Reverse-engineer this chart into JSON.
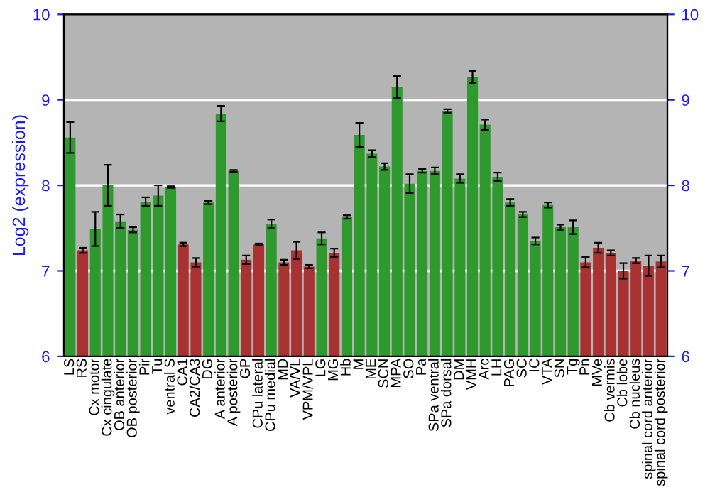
{
  "chart_data": {
    "type": "bar",
    "ylabel": "Log2 (expression)",
    "categories": [
      "LS",
      "RS",
      "Cx motor",
      "Cx cingulate",
      "OB anterior",
      "OB posterior",
      "Pir",
      "Tu",
      "ventral S",
      "CA1",
      "CA2/CA3",
      "DG",
      "A anterior",
      "A posterior",
      "GP",
      "CPu lateral",
      "CPu medial",
      "MD",
      "VA/VL",
      "VPM/VPL",
      "LG",
      "MG",
      "Hb",
      "M",
      "ME",
      "SCN",
      "MPA",
      "SO",
      "Pa",
      "SPa ventral",
      "SPa dorsal",
      "DM",
      "VMH",
      "Arc",
      "LH",
      "PAG",
      "SC",
      "IC",
      "VTA",
      "SN",
      "Tg",
      "Pn",
      "MVe",
      "Cb vermis",
      "Cb lobe",
      "Cb nucleus",
      "spinal cord anterior",
      "spinal cord posterior"
    ],
    "values": [
      8.56,
      7.24,
      7.49,
      8.0,
      7.58,
      7.48,
      7.81,
      7.88,
      7.98,
      7.31,
      7.1,
      7.8,
      8.84,
      8.17,
      7.13,
      7.31,
      7.55,
      7.1,
      7.24,
      7.05,
      7.38,
      7.21,
      7.63,
      8.59,
      8.37,
      8.22,
      9.15,
      8.02,
      8.17,
      8.17,
      8.87,
      8.08,
      9.27,
      8.71,
      8.1,
      7.8,
      7.66,
      7.35,
      7.77,
      7.51,
      7.51,
      7.1,
      7.27,
      7.21,
      7.0,
      7.12,
      7.06,
      7.11
    ],
    "errors": [
      0.18,
      0.03,
      0.2,
      0.24,
      0.08,
      0.03,
      0.05,
      0.12,
      0.01,
      0.02,
      0.05,
      0.02,
      0.09,
      0.01,
      0.05,
      0.01,
      0.05,
      0.03,
      0.1,
      0.02,
      0.07,
      0.05,
      0.02,
      0.14,
      0.04,
      0.04,
      0.13,
      0.11,
      0.02,
      0.04,
      0.02,
      0.05,
      0.07,
      0.06,
      0.05,
      0.04,
      0.03,
      0.04,
      0.03,
      0.03,
      0.08,
      0.06,
      0.06,
      0.03,
      0.09,
      0.03,
      0.12,
      0.07
    ],
    "colors": [
      "#2e9a2e",
      "#a83232",
      "#2e9a2e",
      "#2e9a2e",
      "#2e9a2e",
      "#2e9a2e",
      "#2e9a2e",
      "#2e9a2e",
      "#2e9a2e",
      "#a83232",
      "#a83232",
      "#2e9a2e",
      "#2e9a2e",
      "#2e9a2e",
      "#a83232",
      "#a83232",
      "#2e9a2e",
      "#a83232",
      "#a83232",
      "#a83232",
      "#2e9a2e",
      "#a83232",
      "#2e9a2e",
      "#2e9a2e",
      "#2e9a2e",
      "#2e9a2e",
      "#2e9a2e",
      "#2e9a2e",
      "#2e9a2e",
      "#2e9a2e",
      "#2e9a2e",
      "#2e9a2e",
      "#2e9a2e",
      "#2e9a2e",
      "#2e9a2e",
      "#2e9a2e",
      "#2e9a2e",
      "#2e9a2e",
      "#2e9a2e",
      "#2e9a2e",
      "#2e9a2e",
      "#a83232",
      "#a83232",
      "#a83232",
      "#a83232",
      "#a83232",
      "#a83232",
      "#a83232"
    ],
    "ylim": [
      6,
      10
    ],
    "yticks": [
      6,
      7,
      8,
      9,
      10
    ],
    "y2lim": [
      6,
      10
    ],
    "y2ticks": [
      6,
      7,
      8,
      9,
      10
    ],
    "grid": "y"
  }
}
